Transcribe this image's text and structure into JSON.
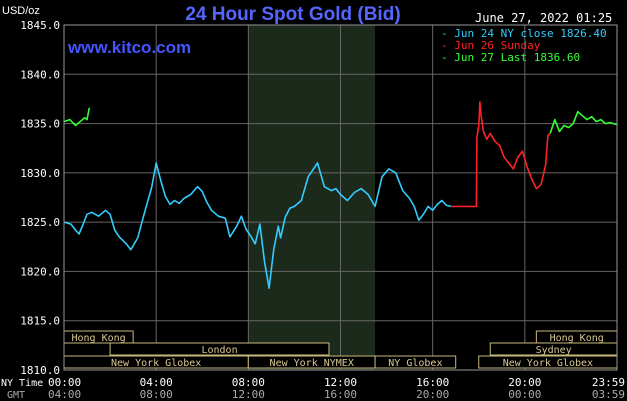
{
  "header": {
    "title": "24 Hour Spot Gold (Bid)",
    "date": "June 27, 2022 01:25",
    "watermark": "www.kitco.com",
    "y_unit": "USD/oz"
  },
  "legend": [
    {
      "label": "- Jun 24 NY close 1826.40",
      "color": "#33ccff"
    },
    {
      "label": "- Jun 26 Sunday",
      "color": "#ff2222"
    },
    {
      "label": "- Jun 27 Last 1836.60",
      "color": "#33ff33"
    }
  ],
  "axis": {
    "row1_label": "NY Time",
    "row2_label": "GMT",
    "ny_ticks": [
      "00:00",
      "04:00",
      "08:00",
      "12:00",
      "16:00",
      "20:00",
      "23:59"
    ],
    "gmt_ticks": [
      "04:00",
      "08:00",
      "12:00",
      "16:00",
      "20:00",
      "00:00",
      "03:59"
    ]
  },
  "sessions": {
    "left": [
      {
        "label": "Hong Kong",
        "row": 0,
        "start": 0,
        "end": 3
      },
      {
        "label": "London",
        "row": 1,
        "start": 2,
        "end": 11.5
      },
      {
        "label": "New York Globex",
        "row": 2,
        "start": 0,
        "end": 8
      },
      {
        "label": "New York NYMEX",
        "row": 2,
        "start": 8,
        "end": 13.5
      },
      {
        "label": "NY Globex",
        "row": 2,
        "start": 13.5,
        "end": 17
      }
    ],
    "right": [
      {
        "label": "Hong Kong",
        "row": 0,
        "start": 20.5,
        "end": 24
      },
      {
        "label": "Sydney",
        "row": 1,
        "start": 18.5,
        "end": 24
      },
      {
        "label": "New York Globex",
        "row": 2,
        "start": 18,
        "end": 24
      }
    ]
  },
  "chart_data": {
    "type": "line",
    "title": "24 Hour Spot Gold (Bid)",
    "ylabel": "USD/oz",
    "xlim": [
      0,
      24
    ],
    "ylim": [
      1810,
      1845
    ],
    "yticks": [
      1810,
      1815,
      1820,
      1825,
      1830,
      1835,
      1840,
      1845
    ],
    "grid": true,
    "nymex_shade": [
      8,
      13.5
    ],
    "series": [
      {
        "name": "Jun 24 NY close 1826.40",
        "color": "#33ccff",
        "x": [
          0,
          0.3,
          0.5,
          0.65,
          0.8,
          1.0,
          1.2,
          1.5,
          1.8,
          2.0,
          2.2,
          2.4,
          2.7,
          2.9,
          3.0,
          3.2,
          3.5,
          3.8,
          4.0,
          4.2,
          4.4,
          4.6,
          4.8,
          5.0,
          5.2,
          5.5,
          5.8,
          6.0,
          6.2,
          6.4,
          6.7,
          7.0,
          7.2,
          7.5,
          7.7,
          7.9,
          8.1,
          8.3,
          8.5,
          8.7,
          8.9,
          9.1,
          9.3,
          9.4,
          9.6,
          9.8,
          10.0,
          10.3,
          10.6,
          11.0,
          11.3,
          11.6,
          11.8,
          12.0,
          12.3,
          12.6,
          12.9,
          13.2,
          13.5,
          13.8,
          14.1,
          14.4,
          14.7,
          15.0,
          15.2,
          15.4,
          15.6,
          15.8,
          16.0,
          16.2,
          16.4,
          16.6,
          16.8
        ],
        "y": [
          1825.0,
          1824.8,
          1824.2,
          1823.8,
          1824.6,
          1825.8,
          1826.0,
          1825.6,
          1826.2,
          1825.8,
          1824.2,
          1823.5,
          1822.8,
          1822.2,
          1822.6,
          1823.4,
          1826.0,
          1828.5,
          1831.0,
          1829.2,
          1827.6,
          1826.8,
          1827.2,
          1826.9,
          1827.4,
          1827.8,
          1828.6,
          1828.1,
          1827.0,
          1826.2,
          1825.6,
          1825.4,
          1823.5,
          1824.6,
          1825.6,
          1824.3,
          1823.6,
          1822.8,
          1824.8,
          1821.0,
          1818.3,
          1822.2,
          1824.6,
          1823.4,
          1825.5,
          1826.4,
          1826.6,
          1827.2,
          1829.6,
          1831.0,
          1828.6,
          1828.2,
          1828.4,
          1827.8,
          1827.2,
          1828.0,
          1828.4,
          1827.8,
          1826.6,
          1829.6,
          1830.4,
          1830.0,
          1828.2,
          1827.4,
          1826.6,
          1825.2,
          1825.8,
          1826.6,
          1826.2,
          1826.8,
          1827.2,
          1826.7,
          1826.6
        ]
      },
      {
        "name": "Jun 26 Sunday",
        "color": "#ff2222",
        "x": [
          16.8,
          17.9,
          17.92,
          18.0,
          18.05,
          18.1,
          18.2,
          18.35,
          18.5,
          18.7,
          18.9,
          19.1,
          19.3,
          19.5,
          19.7,
          19.9,
          20.1,
          20.3,
          20.5,
          20.7,
          20.9,
          21.0,
          21.1
        ],
        "y": [
          1826.6,
          1826.6,
          1833.6,
          1834.8,
          1837.2,
          1835.8,
          1834.2,
          1833.4,
          1834.0,
          1833.2,
          1832.8,
          1831.6,
          1831.0,
          1830.4,
          1831.6,
          1832.2,
          1830.6,
          1829.4,
          1828.4,
          1828.8,
          1830.8,
          1833.8,
          1834.0
        ]
      },
      {
        "name": "Jun 27 Last 1836.60",
        "color": "#33ff33",
        "x": [
          21.1,
          21.3,
          21.5,
          21.7,
          21.9,
          22.1,
          22.3,
          22.5,
          22.7,
          22.9,
          23.1,
          23.3,
          23.5,
          23.7,
          23.99,
          0,
          0.25,
          0.5,
          0.7,
          0.9,
          1.0,
          1.1
        ],
        "y": [
          1834.0,
          1835.4,
          1834.2,
          1834.8,
          1834.6,
          1835.0,
          1836.2,
          1835.8,
          1835.4,
          1835.7,
          1835.2,
          1835.4,
          1835.0,
          1835.1,
          1834.9,
          1835.2,
          1835.4,
          1834.8,
          1835.2,
          1835.6,
          1835.4,
          1836.6
        ]
      }
    ]
  }
}
